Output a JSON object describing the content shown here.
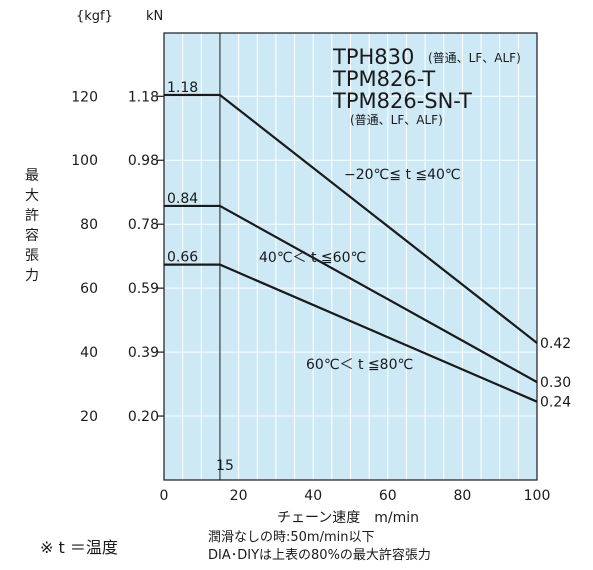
{
  "chart_data": {
    "type": "line",
    "title_lines": [
      "TPH830",
      "TPM826-T",
      "TPM826-SN-T"
    ],
    "title_suffix": "(普通、LF、ALF)",
    "title_sub": "(普通、LF、ALF)",
    "xlabel": "チェーン速度　m/min",
    "ylabel": "最大許容張力",
    "y_unit_kgf": "{kgf}",
    "y_unit_kn": "kN",
    "xlim": [
      0,
      100
    ],
    "ylim_kn": [
      0,
      1.37
    ],
    "x_ticks": [
      "0",
      "20",
      "40",
      "60",
      "80",
      "100"
    ],
    "x_tick_values": [
      0,
      20,
      40,
      60,
      80,
      100
    ],
    "y_ticks_kgf": [
      "20",
      "40",
      "60",
      "80",
      "100",
      "120"
    ],
    "y_ticks_kn": [
      "0.20",
      "0.39",
      "0.59",
      "0.78",
      "0.98",
      "1.18"
    ],
    "y_tick_values_kn": [
      0.196,
      0.392,
      0.588,
      0.784,
      0.98,
      1.176
    ],
    "x_marker_label": "15",
    "x_marker_value": 15,
    "series": [
      {
        "name": "−20℃≦ t ≦40℃",
        "start_label": "1.18",
        "end_label": "0.42",
        "x": [
          0,
          15,
          100
        ],
        "y": [
          1.18,
          1.18,
          0.42
        ]
      },
      {
        "name": "40℃＜ t ≦60℃",
        "start_label": "0.84",
        "end_label": "0.30",
        "x": [
          0,
          15,
          100
        ],
        "y": [
          0.84,
          0.84,
          0.3
        ]
      },
      {
        "name": "60℃＜ t ≦80℃",
        "start_label": "0.66",
        "end_label": "0.24",
        "x": [
          0,
          15,
          100
        ],
        "y": [
          0.66,
          0.66,
          0.24
        ]
      }
    ],
    "plot_bg": "#cde9f5",
    "line_color": "#1a1a1a",
    "grid_color": "#ffffff",
    "grid": true
  },
  "notes": {
    "temp_note": "※ t ＝温度",
    "lube_note_1": "潤滑なしの時:50m/min以下",
    "lube_note_2": "DIA･DIYは上表の80%の最大許容張力"
  }
}
